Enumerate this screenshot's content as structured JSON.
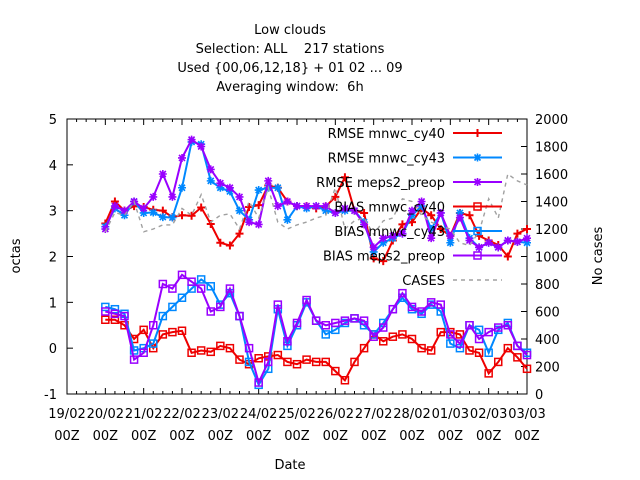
{
  "chart_data": {
    "type": "line",
    "title_lines": [
      "Low clouds",
      "Selection: ALL    217 stations",
      "Used {00,06,12,18} + 01 02 ... 09",
      "Averaging window:  6h"
    ],
    "xlabel": "Date",
    "ylabel": "octas",
    "y2label": "No cases",
    "ylim": [
      -1,
      5
    ],
    "y2lim": [
      0,
      2000
    ],
    "yticks": [
      -1,
      0,
      1,
      2,
      3,
      4,
      5
    ],
    "y2ticks": [
      0,
      200,
      400,
      600,
      800,
      1000,
      1200,
      1400,
      1600,
      1800,
      2000
    ],
    "xticks": [
      "19/02 00Z",
      "20/02 00Z",
      "21/02 00Z",
      "22/02 00Z",
      "23/02 00Z",
      "24/02 00Z",
      "25/02 00Z",
      "26/02 00Z",
      "27/02 00Z",
      "28/02 00Z",
      "01/03 00Z",
      "02/03 00Z",
      "03/03 00Z"
    ],
    "x_start_tick": 1,
    "x_step_days": 0.25,
    "grid": false,
    "legend_position": "top-right",
    "series": [
      {
        "name": "RMSE mnwc_cy40",
        "color": "#ee0000",
        "marker": "plus",
        "dash": "",
        "axis": "left",
        "values": [
          2.72,
          3.2,
          3.0,
          3.1,
          3.08,
          3.02,
          3.0,
          2.86,
          2.9,
          2.89,
          3.07,
          2.71,
          2.3,
          2.24,
          2.5,
          3.08,
          3.12,
          3.55,
          3.5,
          3.2,
          3.1,
          3.1,
          3.05,
          3.09,
          3.3,
          3.73,
          3.0,
          2.95,
          1.96,
          1.9,
          2.35,
          2.7,
          2.75,
          3.05,
          2.9,
          2.6,
          2.45,
          2.95,
          2.9,
          2.45,
          2.35,
          2.25,
          2.0,
          2.5,
          2.6
        ]
      },
      {
        "name": "RMSE mnwc_cy43",
        "color": "#0088ff",
        "marker": "star",
        "dash": "",
        "axis": "left",
        "values": [
          2.65,
          3.05,
          2.9,
          3.2,
          2.95,
          2.96,
          2.86,
          2.85,
          3.5,
          4.5,
          4.45,
          3.65,
          3.5,
          3.42,
          3.0,
          2.8,
          3.45,
          3.5,
          3.5,
          2.8,
          3.1,
          3.05,
          3.1,
          3.0,
          2.95,
          3.0,
          3.0,
          2.75,
          2.1,
          2.3,
          2.4,
          2.5,
          2.9,
          3.1,
          2.6,
          2.95,
          2.3,
          2.95,
          2.4,
          2.2,
          2.3,
          2.2,
          2.35,
          2.32,
          2.3
        ]
      },
      {
        "name": "RMSE meps2_preop",
        "color": "#9900ff",
        "marker": "star",
        "dash": "",
        "axis": "left",
        "values": [
          2.6,
          3.1,
          3.0,
          3.2,
          3.05,
          3.3,
          3.8,
          3.3,
          4.15,
          4.55,
          4.4,
          3.9,
          3.6,
          3.5,
          3.3,
          2.75,
          2.7,
          3.65,
          3.1,
          3.2,
          3.1,
          3.1,
          3.1,
          3.1,
          2.95,
          3.05,
          3.0,
          2.7,
          2.2,
          2.4,
          2.45,
          2.5,
          3.0,
          3.2,
          2.4,
          2.95,
          2.45,
          2.85,
          2.35,
          2.2,
          2.3,
          2.2,
          2.35,
          2.32,
          2.4
        ]
      },
      {
        "name": "BIAS mnwc_cy40",
        "color": "#ee0000",
        "marker": "square",
        "dash": "",
        "axis": "left",
        "values": [
          0.62,
          0.62,
          0.5,
          0.2,
          0.4,
          0.0,
          0.3,
          0.35,
          0.38,
          -0.1,
          -0.05,
          -0.08,
          0.05,
          0.0,
          -0.25,
          -0.35,
          -0.22,
          -0.18,
          -0.15,
          -0.3,
          -0.35,
          -0.25,
          -0.3,
          -0.3,
          -0.5,
          -0.7,
          -0.3,
          0.0,
          0.3,
          0.15,
          0.25,
          0.3,
          0.2,
          0.0,
          -0.05,
          0.35,
          0.35,
          0.3,
          -0.05,
          -0.1,
          -0.55,
          -0.3,
          0.0,
          -0.2,
          -0.45
        ]
      },
      {
        "name": "BIAS mnwc_cy43",
        "color": "#0088ff",
        "marker": "square",
        "dash": "",
        "axis": "left",
        "values": [
          0.9,
          0.85,
          0.75,
          -0.05,
          0.0,
          0.1,
          0.7,
          0.9,
          1.1,
          1.3,
          1.5,
          1.35,
          0.95,
          1.2,
          0.7,
          -0.3,
          -0.8,
          -0.45,
          0.85,
          0.05,
          0.5,
          1.0,
          0.6,
          0.3,
          0.4,
          0.55,
          0.65,
          0.5,
          0.3,
          0.55,
          0.85,
          1.1,
          0.85,
          0.75,
          0.95,
          0.8,
          0.1,
          0.0,
          0.5,
          0.4,
          -0.1,
          0.4,
          0.55,
          0.05,
          -0.1
        ]
      },
      {
        "name": "BIAS meps2_preop",
        "color": "#9900ff",
        "marker": "square",
        "dash": "",
        "axis": "left",
        "values": [
          0.8,
          0.75,
          0.7,
          -0.25,
          -0.1,
          0.5,
          1.4,
          1.3,
          1.6,
          1.45,
          1.3,
          0.8,
          0.9,
          1.3,
          0.7,
          0.0,
          -0.75,
          -0.3,
          0.95,
          0.15,
          0.55,
          1.05,
          0.6,
          0.5,
          0.55,
          0.6,
          0.65,
          0.6,
          0.25,
          0.45,
          0.85,
          1.2,
          0.9,
          0.8,
          1.0,
          0.95,
          0.3,
          0.1,
          0.5,
          0.2,
          0.35,
          0.45,
          0.5,
          0.05,
          -0.15
        ]
      },
      {
        "name": "CASES",
        "color": "#a0a0a0",
        "marker": "none",
        "dash": "4,4",
        "axis": "right",
        "values": [
          1180,
          1320,
          1300,
          1400,
          1180,
          1200,
          1230,
          1230,
          1350,
          1300,
          1450,
          1250,
          1300,
          1310,
          1200,
          1400,
          1280,
          1500,
          1250,
          1200,
          1230,
          1250,
          1280,
          1300,
          1500,
          1200,
          1260,
          1280,
          1160,
          1260,
          1280,
          1420,
          1400,
          1300,
          1250,
          1220,
          1200,
          1100,
          1080,
          1180,
          1420,
          1280,
          1600,
          1550,
          1520
        ]
      }
    ]
  }
}
